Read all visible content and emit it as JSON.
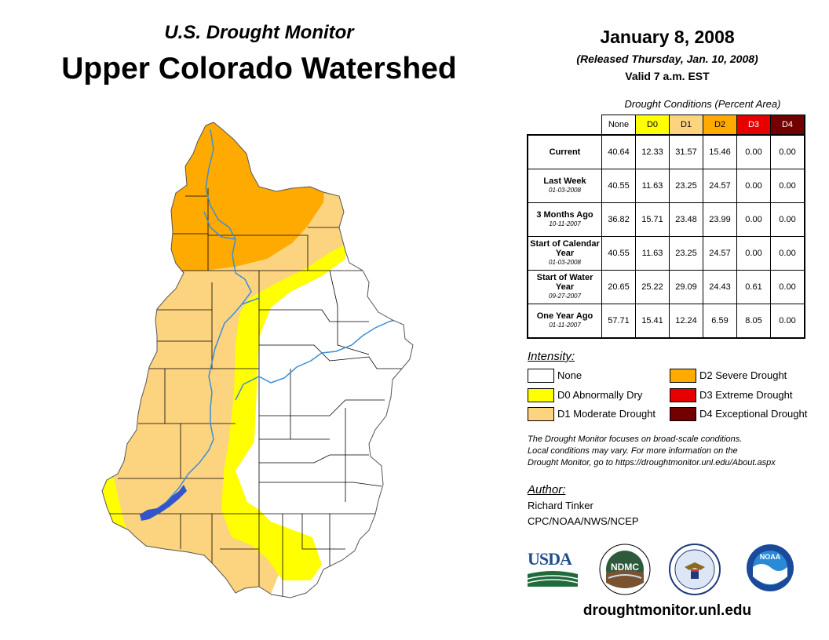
{
  "header": {
    "subtitle": "U.S. Drought Monitor",
    "title": "Upper Colorado Watershed",
    "date": "January 8, 2008",
    "released": "(Released Thursday, Jan. 10, 2008)",
    "valid": "Valid 7 a.m. EST"
  },
  "table": {
    "title": "Drought Conditions (Percent Area)",
    "columns": [
      "None",
      "D0",
      "D1",
      "D2",
      "D3",
      "D4"
    ],
    "column_colors": [
      "#ffffff",
      "#ffff00",
      "#fcd37f",
      "#ffaa00",
      "#e60000",
      "#730000"
    ],
    "rows": [
      {
        "label": "Current",
        "date": "",
        "values": [
          "40.64",
          "12.33",
          "31.57",
          "15.46",
          "0.00",
          "0.00"
        ]
      },
      {
        "label": "Last Week",
        "date": "01-03-2008",
        "values": [
          "40.55",
          "11.63",
          "23.25",
          "24.57",
          "0.00",
          "0.00"
        ]
      },
      {
        "label": "3 Months Ago",
        "date": "10-11-2007",
        "values": [
          "36.82",
          "15.71",
          "23.48",
          "23.99",
          "0.00",
          "0.00"
        ]
      },
      {
        "label": "Start of Calendar Year",
        "date": "01-03-2008",
        "values": [
          "40.55",
          "11.63",
          "23.25",
          "24.57",
          "0.00",
          "0.00"
        ]
      },
      {
        "label": "Start of Water Year",
        "date": "09-27-2007",
        "values": [
          "20.65",
          "25.22",
          "29.09",
          "24.43",
          "0.61",
          "0.00"
        ]
      },
      {
        "label": "One Year Ago",
        "date": "01-11-2007",
        "values": [
          "57.71",
          "15.41",
          "12.24",
          "6.59",
          "8.05",
          "0.00"
        ]
      }
    ]
  },
  "legend": {
    "title": "Intensity:",
    "items": [
      {
        "label": "None",
        "color": "#ffffff"
      },
      {
        "label": "D0 Abnormally Dry",
        "color": "#ffff00"
      },
      {
        "label": "D1 Moderate Drought",
        "color": "#fcd37f"
      },
      {
        "label": "D2 Severe Drought",
        "color": "#ffaa00"
      },
      {
        "label": "D3 Extreme Drought",
        "color": "#e60000"
      },
      {
        "label": "D4 Exceptional Drought",
        "color": "#730000"
      }
    ]
  },
  "note": {
    "line1": "The Drought Monitor focuses on broad-scale conditions.",
    "line2": "Local conditions may vary. For more information on the",
    "line3": "Drought Monitor, go to https://droughtmonitor.unl.edu/About.aspx"
  },
  "author": {
    "title": "Author:",
    "name": "Richard Tinker",
    "org": "CPC/NOAA/NWS/NCEP"
  },
  "logos": {
    "usda": "USDA",
    "ndmc": "NDMC",
    "noaa": "NOAA"
  },
  "website": "droughtmonitor.unl.edu",
  "map": {
    "region": "Upper Colorado Watershed",
    "river_color": "#3a8fd9",
    "lake_color": "#3355cc"
  }
}
